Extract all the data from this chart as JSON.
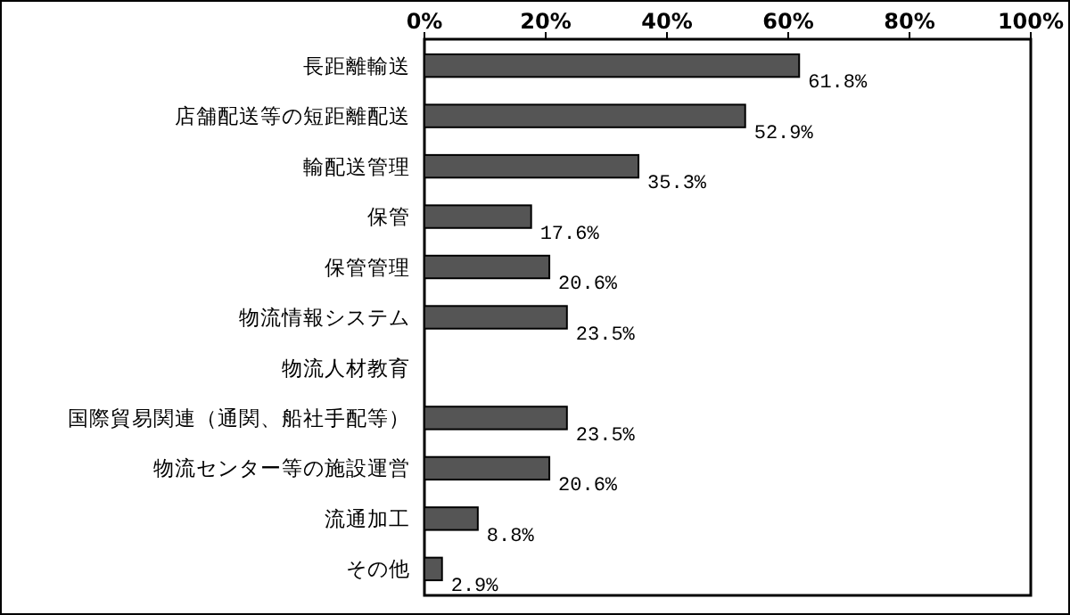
{
  "chart_data": {
    "type": "bar",
    "orientation": "horizontal",
    "categories": [
      "長距離輸送",
      "店舗配送等の短距離配送",
      "輸配送管理",
      "保管",
      "保管管理",
      "物流情報システム",
      "物流人材教育",
      "国際貿易関連（通関、船社手配等）",
      "物流センター等の施設運営",
      "流通加工",
      "その他"
    ],
    "values": [
      61.8,
      52.9,
      35.3,
      17.6,
      20.6,
      23.5,
      null,
      23.5,
      20.6,
      8.8,
      2.9
    ],
    "value_labels": [
      "61.8%",
      "52.9%",
      "35.3%",
      "17.6%",
      "20.6%",
      "23.5%",
      null,
      "23.5%",
      "20.6%",
      "8.8%",
      "2.9%"
    ],
    "color": "#555555",
    "xlim": [
      0,
      100
    ],
    "xticks": [
      {
        "value": 0,
        "label": "0%"
      },
      {
        "value": 20,
        "label": "20%"
      },
      {
        "value": 40,
        "label": "40%"
      },
      {
        "value": 60,
        "label": "60%"
      },
      {
        "value": 80,
        "label": "80%"
      },
      {
        "value": 100,
        "label": "100%"
      }
    ],
    "grid": false
  }
}
